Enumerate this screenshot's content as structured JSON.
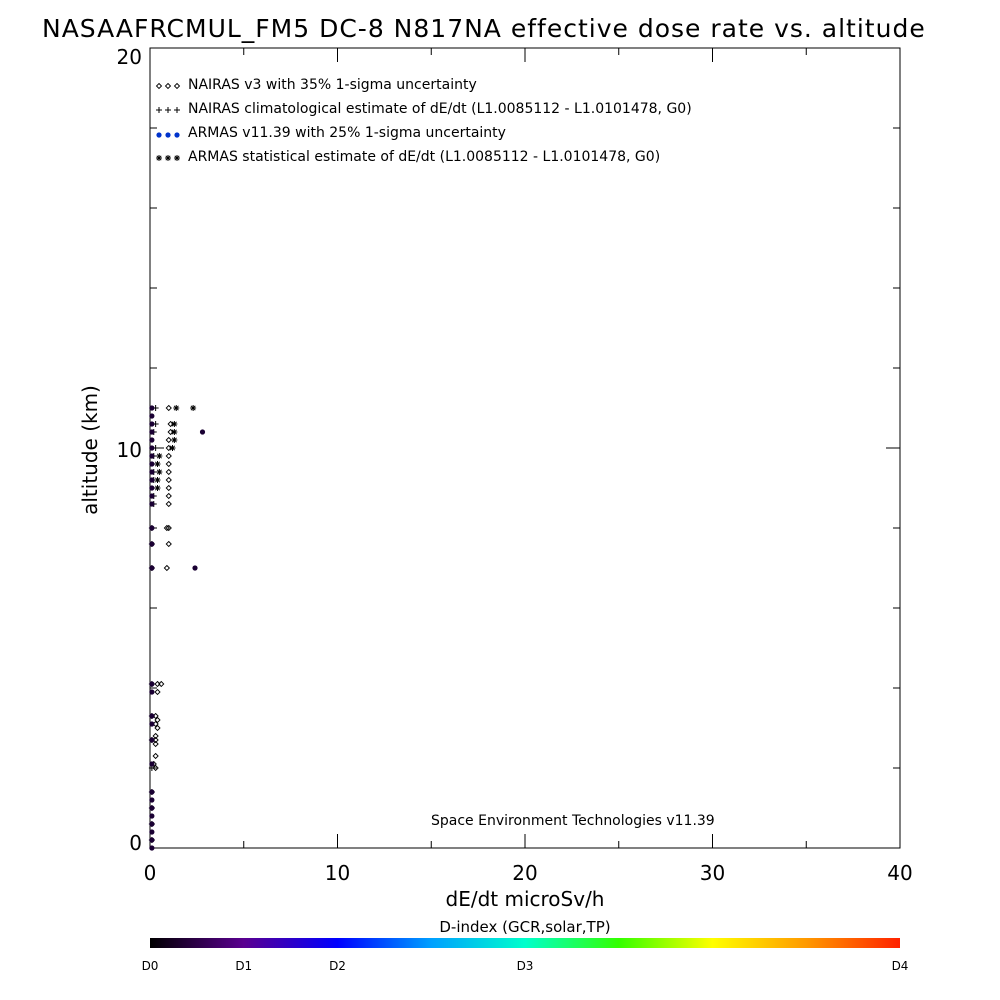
{
  "chart_data": {
    "type": "scatter",
    "title": "NASAAFRCMUL_FM5 DC-8   N817NA effective dose rate vs. altitude",
    "xlabel": "dE/dt microSv/h",
    "ylabel": "altitude (km)",
    "xlim": [
      0,
      40
    ],
    "ylim": [
      0,
      20
    ],
    "x_ticks": [
      "0",
      "10",
      "20",
      "30",
      "40"
    ],
    "y_ticks": [
      "0",
      "10",
      "20"
    ],
    "credit": "Space Environment Technologies v11.39",
    "legend_placement": "top-left",
    "series": [
      {
        "name": "NAIRAS v3 with 35% 1-sigma uncertainty",
        "marker": "diamond",
        "color": "#000000",
        "points": [
          [
            1.0,
            11.0
          ],
          [
            1.1,
            10.6
          ],
          [
            1.1,
            10.4
          ],
          [
            1.0,
            10.2
          ],
          [
            1.0,
            10.0
          ],
          [
            1.0,
            9.8
          ],
          [
            1.0,
            9.6
          ],
          [
            1.0,
            9.4
          ],
          [
            1.0,
            9.2
          ],
          [
            1.0,
            9.0
          ],
          [
            1.0,
            8.8
          ],
          [
            1.0,
            8.6
          ],
          [
            0.9,
            8.0
          ],
          [
            1.0,
            8.0
          ],
          [
            1.0,
            7.6
          ],
          [
            0.9,
            7.0
          ],
          [
            0.4,
            4.1
          ],
          [
            0.6,
            4.1
          ],
          [
            0.4,
            3.9
          ],
          [
            0.3,
            3.3
          ],
          [
            0.4,
            3.2
          ],
          [
            0.3,
            3.1
          ],
          [
            0.4,
            3.0
          ],
          [
            0.3,
            2.8
          ],
          [
            0.3,
            2.7
          ],
          [
            0.3,
            2.6
          ],
          [
            0.3,
            2.3
          ],
          [
            0.2,
            2.1
          ],
          [
            0.3,
            2.0
          ]
        ]
      },
      {
        "name": "NAIRAS climatological estimate of dE/dt (L1.0085112 - L1.0101478, G0)",
        "marker": "plus",
        "color": "#000000",
        "points": [
          [
            0.3,
            11.0
          ],
          [
            0.3,
            10.6
          ],
          [
            0.2,
            10.4
          ],
          [
            0.3,
            10.0
          ],
          [
            0.2,
            9.8
          ],
          [
            0.2,
            9.4
          ],
          [
            0.2,
            9.2
          ],
          [
            0.2,
            8.8
          ],
          [
            0.2,
            8.6
          ],
          [
            0.1,
            8.0
          ],
          [
            0.1,
            7.6
          ],
          [
            0.1,
            7.0
          ],
          [
            0.1,
            4.1
          ],
          [
            0.1,
            3.3
          ],
          [
            0.1,
            2.7
          ],
          [
            0.1,
            2.0
          ],
          [
            0.1,
            1.4
          ],
          [
            0.1,
            1.0
          ],
          [
            0.1,
            0.6
          ],
          [
            0.1,
            0.2
          ]
        ]
      },
      {
        "name": "ARMAS v11.39 with 25% 1-sigma uncertainty",
        "marker": "filled-circle",
        "color": "#0033cc",
        "points": [
          [
            0.1,
            11.0
          ],
          [
            0.1,
            10.8
          ],
          [
            0.1,
            10.6
          ],
          [
            0.1,
            10.4
          ],
          [
            2.8,
            10.4
          ],
          [
            0.1,
            10.2
          ],
          [
            0.1,
            10.0
          ],
          [
            0.1,
            9.8
          ],
          [
            0.1,
            9.6
          ],
          [
            0.1,
            9.4
          ],
          [
            0.1,
            9.2
          ],
          [
            0.1,
            9.0
          ],
          [
            0.1,
            8.8
          ],
          [
            0.1,
            8.6
          ],
          [
            0.1,
            8.0
          ],
          [
            0.1,
            7.6
          ],
          [
            0.1,
            7.0
          ],
          [
            2.4,
            7.0
          ],
          [
            0.1,
            4.1
          ],
          [
            0.1,
            3.9
          ],
          [
            0.1,
            3.3
          ],
          [
            0.1,
            3.1
          ],
          [
            0.1,
            2.7
          ],
          [
            0.1,
            2.1
          ],
          [
            0.1,
            1.4
          ],
          [
            0.1,
            1.2
          ],
          [
            0.1,
            1.0
          ],
          [
            0.1,
            0.8
          ],
          [
            0.1,
            0.6
          ],
          [
            0.1,
            0.4
          ],
          [
            0.1,
            0.2
          ],
          [
            0.1,
            0.0
          ]
        ]
      },
      {
        "name": "ARMAS statistical estimate of dE/dt (L1.0085112 - L1.0101478, G0)",
        "marker": "asterisk",
        "color": "#000000",
        "points": [
          [
            1.4,
            11.0
          ],
          [
            2.3,
            11.0
          ],
          [
            1.3,
            10.6
          ],
          [
            1.3,
            10.4
          ],
          [
            1.3,
            10.2
          ],
          [
            1.2,
            10.0
          ],
          [
            0.5,
            9.8
          ],
          [
            0.4,
            9.6
          ],
          [
            0.5,
            9.4
          ],
          [
            0.4,
            9.2
          ],
          [
            0.4,
            9.0
          ]
        ]
      }
    ],
    "colorbar": {
      "title": "D-index (GCR,solar,TP)",
      "labels": [
        {
          "text": "D0",
          "pos": 0.0
        },
        {
          "text": "D1",
          "pos": 0.125
        },
        {
          "text": "D2",
          "pos": 0.25
        },
        {
          "text": "D3",
          "pos": 0.5
        },
        {
          "text": "D4",
          "pos": 1.0
        }
      ],
      "colors": [
        "#000000",
        "#5a0090",
        "#0000ff",
        "#00a0ff",
        "#00ffcc",
        "#33ff00",
        "#ffff00",
        "#ff9900",
        "#ff2200"
      ]
    }
  }
}
